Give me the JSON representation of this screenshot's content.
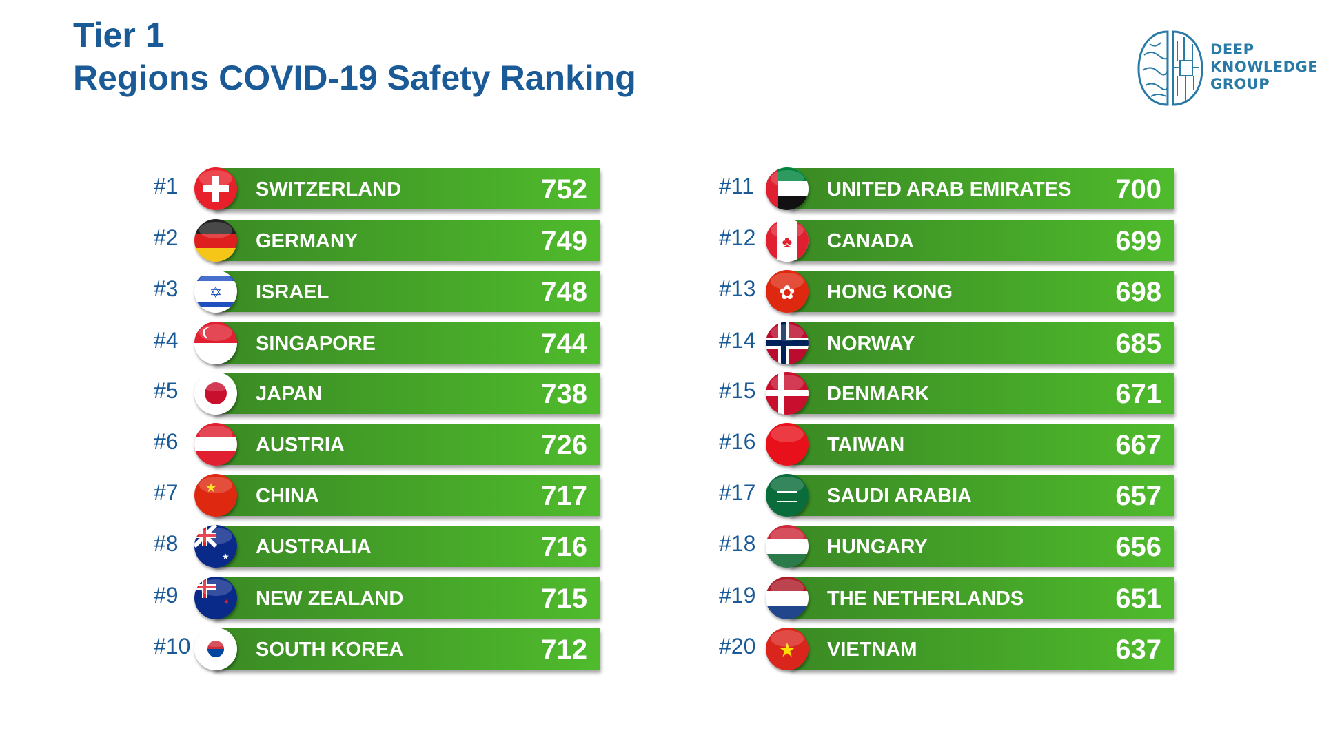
{
  "header": {
    "line1": "Tier 1",
    "line2": "Regions COVID-19 Safety Ranking"
  },
  "logo": {
    "line1": "DEEP",
    "line2": "KNOWLEDGE",
    "line3": "GROUP",
    "icon": "brain-circuit-icon"
  },
  "bar_color_start": "#3a8a24",
  "bar_color_end": "#4fbb2c",
  "title_color": "#1a5a96",
  "rankings": [
    {
      "rank": "#1",
      "name": "SWITZERLAND",
      "score": "752",
      "flag": "ch"
    },
    {
      "rank": "#2",
      "name": "GERMANY",
      "score": "749",
      "flag": "de"
    },
    {
      "rank": "#3",
      "name": "ISRAEL",
      "score": "748",
      "flag": "il"
    },
    {
      "rank": "#4",
      "name": "SINGAPORE",
      "score": "744",
      "flag": "sg"
    },
    {
      "rank": "#5",
      "name": "JAPAN",
      "score": "738",
      "flag": "jp"
    },
    {
      "rank": "#6",
      "name": "AUSTRIA",
      "score": "726",
      "flag": "at"
    },
    {
      "rank": "#7",
      "name": "CHINA",
      "score": "717",
      "flag": "cn"
    },
    {
      "rank": "#8",
      "name": "AUSTRALIA",
      "score": "716",
      "flag": "au"
    },
    {
      "rank": "#9",
      "name": "NEW ZEALAND",
      "score": "715",
      "flag": "nz"
    },
    {
      "rank": "#10",
      "name": "SOUTH KOREA",
      "score": "712",
      "flag": "kr"
    },
    {
      "rank": "#11",
      "name": "UNITED ARAB EMIRATES",
      "score": "700",
      "flag": "ae"
    },
    {
      "rank": "#12",
      "name": "CANADA",
      "score": "699",
      "flag": "ca"
    },
    {
      "rank": "#13",
      "name": "HONG KONG",
      "score": "698",
      "flag": "hk"
    },
    {
      "rank": "#14",
      "name": "NORWAY",
      "score": "685",
      "flag": "no"
    },
    {
      "rank": "#15",
      "name": "DENMARK",
      "score": "671",
      "flag": "dk"
    },
    {
      "rank": "#16",
      "name": "TAIWAN",
      "score": "667",
      "flag": "tw"
    },
    {
      "rank": "#17",
      "name": "SAUDI ARABIA",
      "score": "657",
      "flag": "sa"
    },
    {
      "rank": "#18",
      "name": "HUNGARY",
      "score": "656",
      "flag": "hu"
    },
    {
      "rank": "#19",
      "name": "THE NETHERLANDS",
      "score": "651",
      "flag": "nl"
    },
    {
      "rank": "#20",
      "name": "VIETNAM",
      "score": "637",
      "flag": "vn"
    }
  ]
}
